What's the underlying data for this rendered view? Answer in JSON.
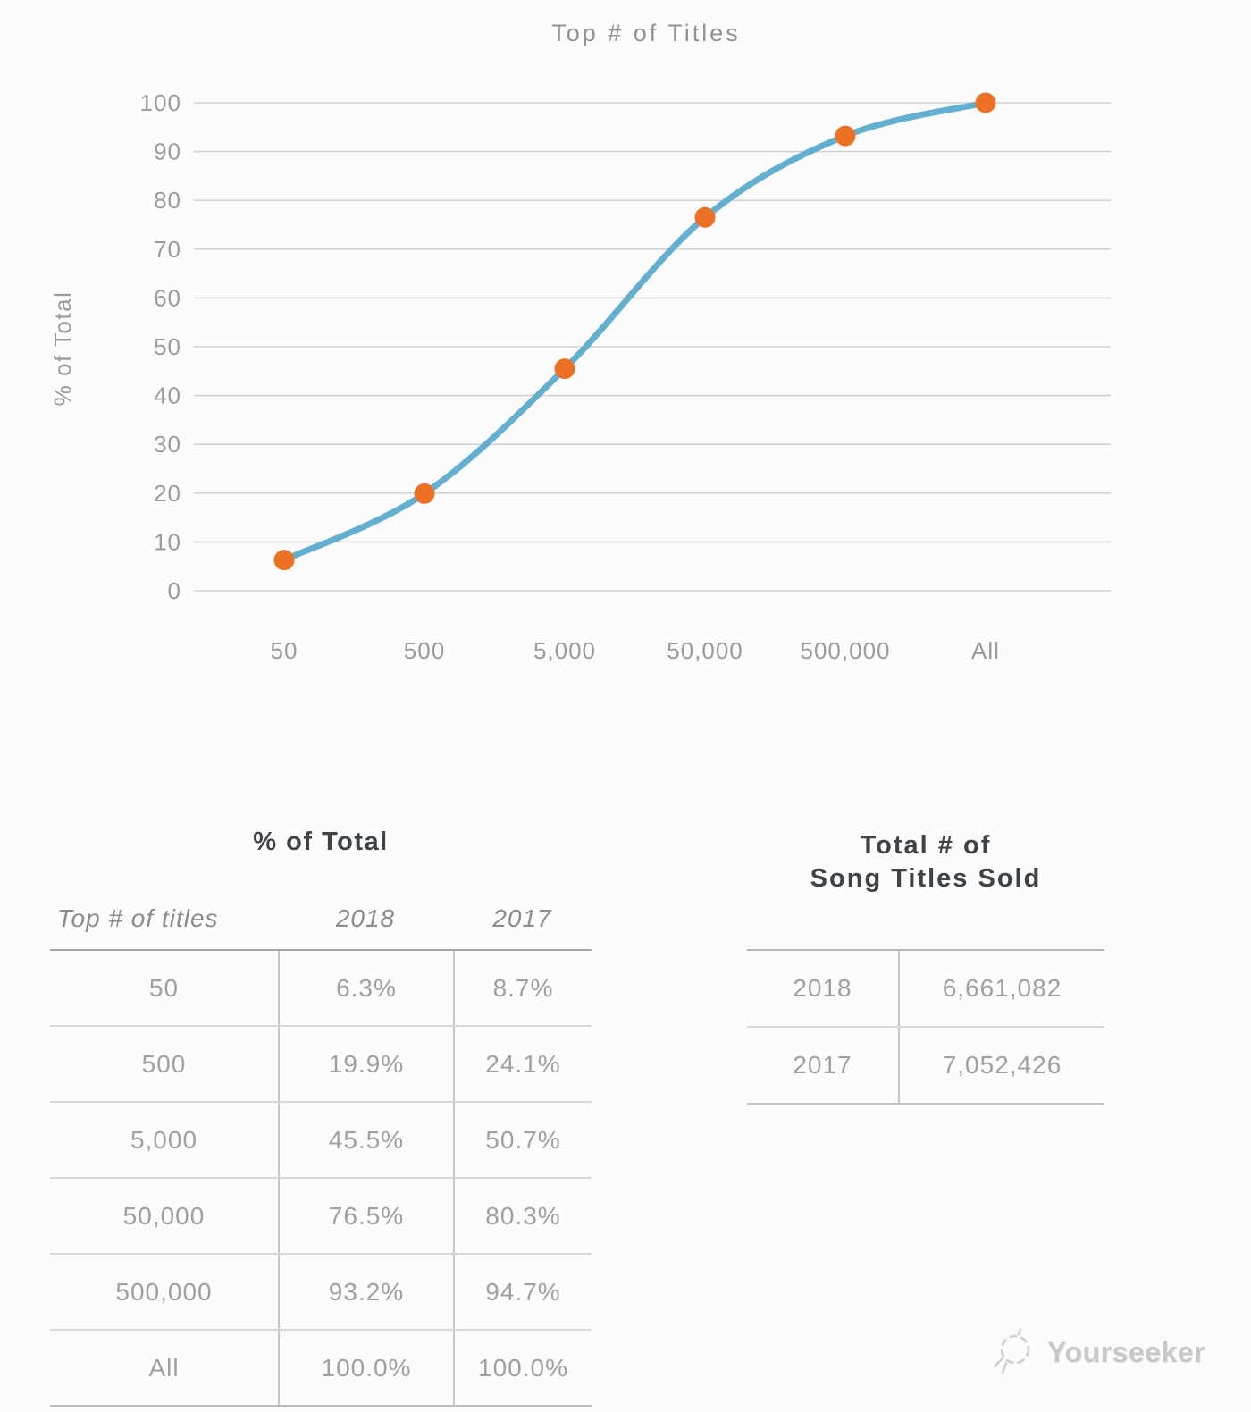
{
  "page": {
    "background": "#fcfcfc",
    "watermark": {
      "brand": "Yourseeker"
    }
  },
  "chart_data": {
    "type": "line",
    "title": "Top # of Titles",
    "xlabel": "",
    "ylabel": "% of Total",
    "categories": [
      "50",
      "500",
      "5,000",
      "50,000",
      "500,000",
      "All"
    ],
    "series": [
      {
        "name": "2018",
        "values": [
          6.3,
          19.9,
          45.5,
          76.5,
          93.2,
          100.0
        ]
      }
    ],
    "ylim": [
      0,
      100
    ],
    "yticks": [
      0,
      10,
      20,
      30,
      40,
      50,
      60,
      70,
      80,
      90,
      100
    ],
    "grid": true,
    "legend_position": "none",
    "marker": "circle",
    "colors": {
      "line": "#63AFCF",
      "point": "#ED7124",
      "grid": "#d2d2d2",
      "tick_labels": "#9b9b9b",
      "title": "#8f9397"
    }
  },
  "pct_table": {
    "title": "% of Total",
    "columns": [
      "Top # of titles",
      "2018",
      "2017"
    ],
    "rows": [
      {
        "titles": "50",
        "y2018": "6.3%",
        "y2017": "8.7%"
      },
      {
        "titles": "500",
        "y2018": "19.9%",
        "y2017": "24.1%"
      },
      {
        "titles": "5,000",
        "y2018": "45.5%",
        "y2017": "50.7%"
      },
      {
        "titles": "50,000",
        "y2018": "76.5%",
        "y2017": "80.3%"
      },
      {
        "titles": "500,000",
        "y2018": "93.2%",
        "y2017": "94.7%"
      },
      {
        "titles": "All",
        "y2018": "100.0%",
        "y2017": "100.0%"
      }
    ]
  },
  "totals_table": {
    "title_line1": "Total # of",
    "title_line2": "Song Titles Sold",
    "rows": [
      {
        "year": "2018",
        "value": "6,661,082"
      },
      {
        "year": "2017",
        "value": "7,052,426"
      }
    ]
  }
}
